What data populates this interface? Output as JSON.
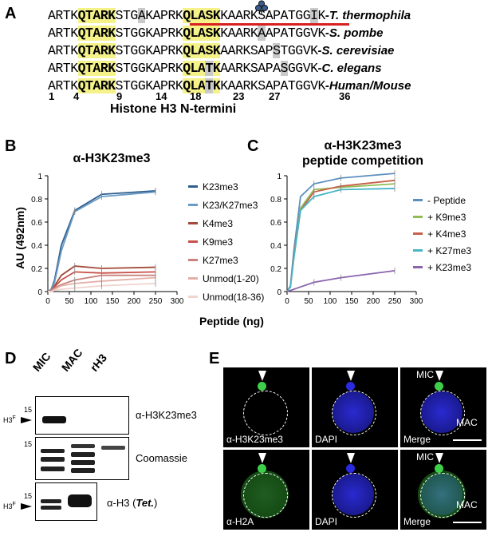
{
  "panelA": {
    "letter": "A",
    "rows": [
      {
        "seg1": "ARTK",
        "y1": "QTARK",
        "seg2": "STG",
        "g1": "A",
        "seg3": "KAPRK",
        "y2": "QLASK",
        "seg4": "KAARKSAPATGG",
        "g2": "I",
        "seg5": "K",
        "organism": "T. thermophila"
      },
      {
        "seg1": "ARTK",
        "y1": "QTARK",
        "seg2": "STGGKAPRK",
        "g1": "",
        "seg3": "",
        "y2": "QLASK",
        "seg4": "KAARK",
        "g2": "A",
        "seg5": "APATGGVK",
        "organism": "S. pombe"
      },
      {
        "seg1": "ARTK",
        "y1": "QTARK",
        "seg2": "STGGKAPRK",
        "g1": "",
        "seg3": "",
        "y2": "QLASK",
        "seg4": "AARKSAP",
        "g2": "S",
        "seg5": "TGGVK",
        "organism": "S. cerevisiae"
      },
      {
        "seg1": "ARTK",
        "y1": "QTARK",
        "seg2": "STGGKAPRK",
        "g1": "",
        "seg3": "",
        "y2": "QLA",
        "g3": "T",
        "y3": "K",
        "seg4": "AARKSAPA",
        "g2": "S",
        "seg5": "GGVK",
        "organism": "C. elegans"
      },
      {
        "seg1": "ARTK",
        "y1": "QTARK",
        "seg2": "STGGKAPRK",
        "g1": "",
        "seg3": "",
        "y2": "QLA",
        "g3": "T",
        "y3": "K",
        "seg4": "KAARKSAPATGGVK",
        "g2": "",
        "seg5": "",
        "organism": "Human/Mouse"
      }
    ],
    "positions": [
      "1",
      "4",
      "9",
      "14",
      "18",
      "23",
      "27",
      "36"
    ],
    "caption": "Histone H3 N-termini"
  },
  "panelB": {
    "letter": "B",
    "title": "α-H3K23me3",
    "ylabel": "AU (492nm)",
    "legend": [
      "K23me3",
      "K23/K27me3",
      "K4me3",
      "K9me3",
      "K27me3",
      "Unmod(1-20)",
      "Unmod(18-36)"
    ]
  },
  "panelC": {
    "letter": "C",
    "title_line1": "α-H3K23me3",
    "title_line2": "peptide competition",
    "legend": [
      "- Peptide",
      "+ K9me3",
      "+ K4me3",
      "+ K27me3",
      "+ K23me3"
    ]
  },
  "xlabel_shared": "Peptide (ng)",
  "chart_data": [
    {
      "type": "line",
      "title": "α-H3K23me3",
      "xlabel": "Peptide (ng)",
      "ylabel": "AU (492nm)",
      "xlim": [
        0,
        300
      ],
      "ylim": [
        0,
        1
      ],
      "x": [
        0,
        7.8,
        15.6,
        31.25,
        62.5,
        125,
        250
      ],
      "series": [
        {
          "name": "K23me3",
          "color": "#2f5f8f",
          "values": [
            0,
            0.02,
            0.1,
            0.4,
            0.7,
            0.84,
            0.87
          ]
        },
        {
          "name": "K23/K27me3",
          "color": "#6a9bc4",
          "values": [
            0,
            0.02,
            0.08,
            0.35,
            0.69,
            0.82,
            0.86
          ]
        },
        {
          "name": "K4me3",
          "color": "#a34a3a",
          "values": [
            0,
            0.01,
            0.05,
            0.14,
            0.22,
            0.2,
            0.21
          ]
        },
        {
          "name": "K9me3",
          "color": "#c8524a",
          "values": [
            0,
            0.01,
            0.04,
            0.1,
            0.17,
            0.16,
            0.17
          ]
        },
        {
          "name": "K27me3",
          "color": "#c9837c",
          "values": [
            0,
            0.01,
            0.03,
            0.06,
            0.1,
            0.14,
            0.14
          ]
        },
        {
          "name": "Unmod(1-20)",
          "color": "#e3b0a8",
          "values": [
            0,
            0.0,
            0.02,
            0.05,
            0.07,
            0.09,
            0.12
          ]
        },
        {
          "name": "Unmod(18-36)",
          "color": "#f0d4cd",
          "values": [
            0,
            0.0,
            0.01,
            0.02,
            0.03,
            0.05,
            0.07
          ]
        }
      ],
      "xticks": [
        "0",
        "50",
        "100",
        "150",
        "200",
        "250",
        "300"
      ],
      "yticks": [
        "0",
        "0.2",
        "0.4",
        "0.6",
        "0.8",
        "1"
      ]
    },
    {
      "type": "line",
      "title": "α-H3K23me3 peptide competition",
      "xlabel": "Peptide (ng)",
      "xlim": [
        0,
        300
      ],
      "ylim": [
        0,
        1
      ],
      "x": [
        0,
        7.8,
        15.6,
        31.25,
        62.5,
        125,
        250
      ],
      "series": [
        {
          "name": "- Peptide",
          "color": "#5c8fbf",
          "values": [
            0,
            0.05,
            0.35,
            0.82,
            0.93,
            0.98,
            1.02
          ]
        },
        {
          "name": "+ K9me3",
          "color": "#8fbe55",
          "values": [
            0,
            0.04,
            0.3,
            0.72,
            0.88,
            0.9,
            0.93
          ]
        },
        {
          "name": "+ K4me3",
          "color": "#c8604a",
          "values": [
            0,
            0.04,
            0.3,
            0.7,
            0.86,
            0.91,
            0.96
          ]
        },
        {
          "name": "+ K27me3",
          "color": "#47b6c8",
          "values": [
            0,
            0.04,
            0.28,
            0.7,
            0.82,
            0.88,
            0.89
          ]
        },
        {
          "name": "+ K23me3",
          "color": "#8a64ad",
          "values": [
            0,
            0.01,
            0.02,
            0.04,
            0.08,
            0.12,
            0.18
          ]
        }
      ],
      "xticks": [
        "0",
        "50",
        "100",
        "150",
        "200",
        "250",
        "300"
      ],
      "yticks": [
        "0",
        "0.2",
        "0.4",
        "0.6",
        "0.8",
        "1"
      ]
    }
  ],
  "panelD": {
    "letter": "D",
    "lanes": [
      "MIC",
      "MAC",
      "rH3"
    ],
    "mw": "15",
    "h3f": "H3",
    "h3f_sup": "F",
    "labels": [
      "α-H3K23me3",
      "Coomassie",
      "α-H3 ("
    ],
    "tet": "Tet.",
    "tet_close": ")"
  },
  "panelE": {
    "letter": "E",
    "row1": [
      "α-H3K23me3",
      "DAPI",
      "Merge"
    ],
    "row2": [
      "α-H2A",
      "DAPI",
      "Merge"
    ],
    "mic": "MIC",
    "mac": "MAC"
  }
}
